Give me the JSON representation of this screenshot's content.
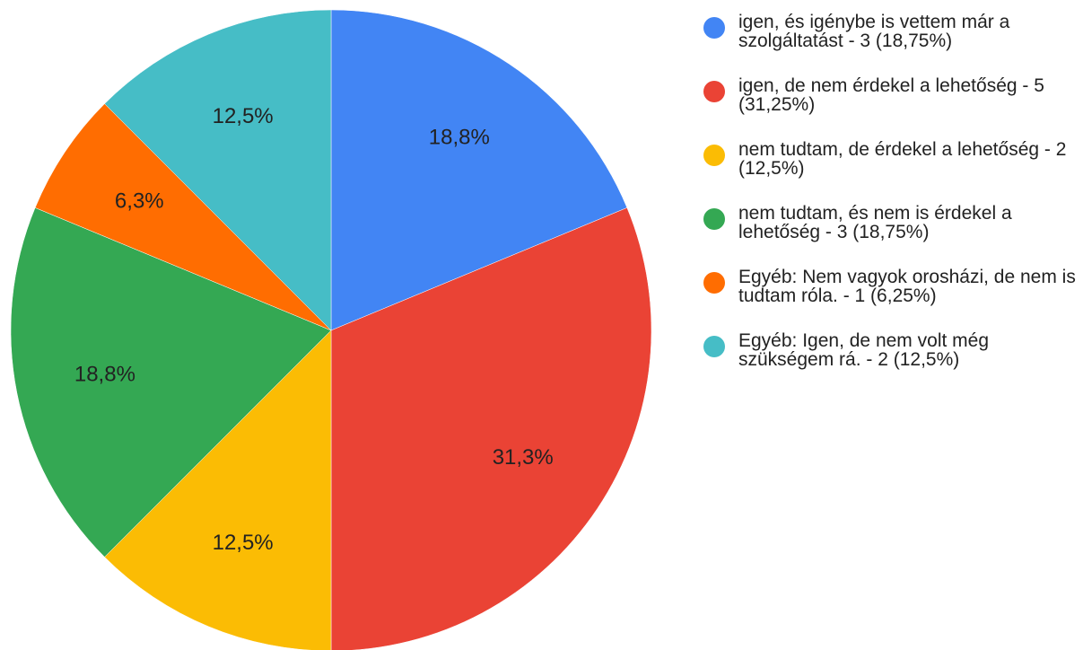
{
  "chart_data": {
    "type": "pie",
    "categories": [
      "igen, és igénybe is vettem már a szolgáltatást - 3 (18,75%)",
      "igen, de nem érdekel a lehetőség - 5 (31,25%)",
      "nem tudtam, de érdekel a lehetőség - 2 (12,5%)",
      "nem tudtam, és nem is érdekel a lehetőség - 3 (18,75%)",
      "Egyéb: Nem vagyok orosházi, de nem is tudtam róla. - 1 (6,25%)",
      "Egyéb: Igen, de nem volt még szükségem rá. - 2 (12,5%)"
    ],
    "values": [
      18.75,
      31.25,
      12.5,
      18.75,
      6.25,
      12.5
    ],
    "value_labels": [
      "18,8%",
      "31,3%",
      "12,5%",
      "18,8%",
      "6,3%",
      "12,5%"
    ],
    "colors": [
      "#4285f4",
      "#ea4335",
      "#fbbc04",
      "#34a853",
      "#ff6d01",
      "#46bdc6"
    ],
    "legend": "right"
  }
}
